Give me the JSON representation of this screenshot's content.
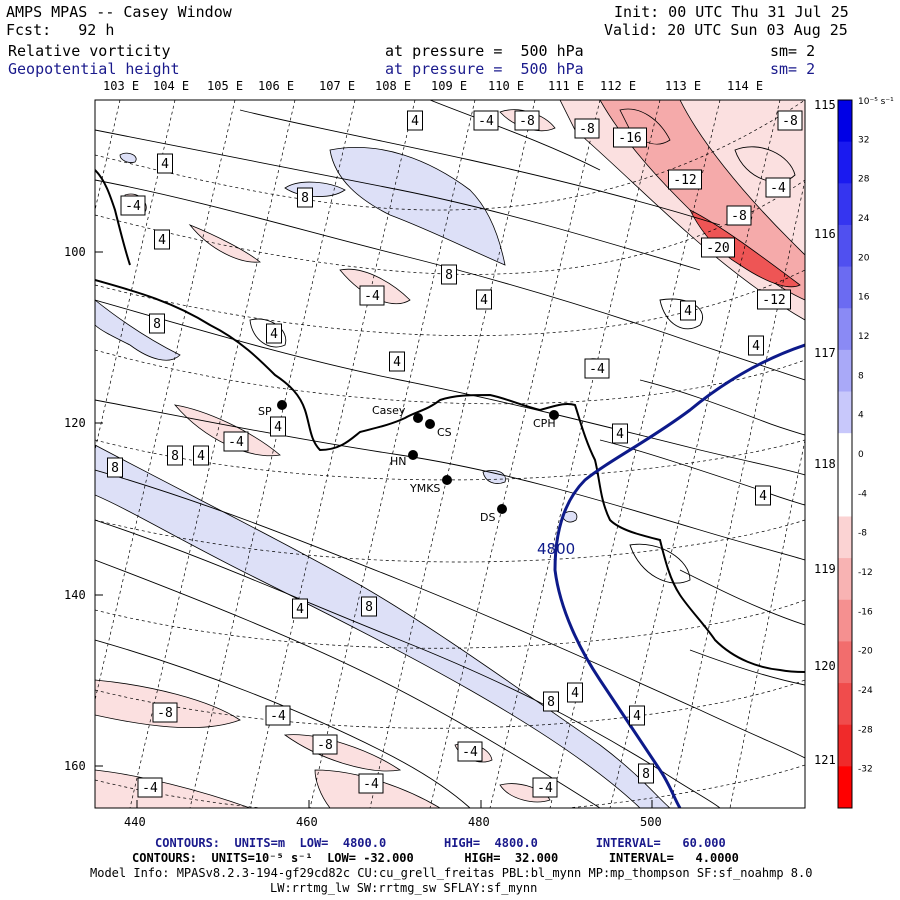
{
  "header": {
    "title": "AMPS MPAS -- Casey Window",
    "forecast": "Fcst:   92 h",
    "init": "Init: 00 UTC Thu 31 Jul 25",
    "valid": "Valid: 20 UTC Sun 03 Aug 25",
    "field1": "Relative vorticity",
    "field1_level": "at pressure =  500 hPa",
    "field1_smooth": "sm= 2",
    "field2": "Geopotential height",
    "field2_level": "at pressure =  500 hPa",
    "field2_smooth": "sm= 2"
  },
  "top_lon_labels": [
    "103 E",
    "104 E",
    "105 E",
    "106 E",
    "107 E",
    "108 E",
    "109 E",
    "110 E",
    "111 E",
    "112 E",
    "113 E",
    "114 E"
  ],
  "right_lon_labels": [
    "115 E",
    "116 E",
    "117 E",
    "118 E",
    "119 E",
    "120 E",
    "121 E"
  ],
  "x_ticks": [
    "440",
    "460",
    "480",
    "500"
  ],
  "y_ticks": [
    "100",
    "120",
    "140",
    "160"
  ],
  "stations": [
    {
      "name": "SP"
    },
    {
      "name": "Casey"
    },
    {
      "name": "CS"
    },
    {
      "name": "HN"
    },
    {
      "name": "YMKS"
    },
    {
      "name": "DS"
    },
    {
      "name": "CPH"
    }
  ],
  "height_contour_label": "4800",
  "vorticity_labels": [
    "4",
    "8",
    "-4",
    "-8",
    "-12",
    "-16",
    "-20"
  ],
  "colorbar": {
    "unit": "10⁻⁵ s⁻¹",
    "labels": [
      "32",
      "28",
      "24",
      "20",
      "16",
      "12",
      "8",
      "4",
      "0",
      "-4",
      "-8",
      "-12",
      "-16",
      "-20",
      "-24",
      "-28",
      "-32"
    ],
    "colors": [
      "#0000e6",
      "#1a1af0",
      "#3535f0",
      "#5050f0",
      "#6b6bf2",
      "#8a8af5",
      "#a9a9f8",
      "#c8c8fb",
      "#ffffff",
      "#ffffff",
      "#fbd3d3",
      "#f8b3b3",
      "#f59090",
      "#f26d6d",
      "#f04c4c",
      "#f02a2a",
      "#ff0000"
    ]
  },
  "footer": {
    "line1": "CONTOURS:  UNITS=m  LOW=  4800.0        HIGH=  4800.0        INTERVAL=   60.000",
    "line2": "CONTOURS:  UNITS=10⁻⁵ s⁻¹  LOW= -32.000       HIGH=  32.000       INTERVAL=   4.0000",
    "line3": "Model Info: MPASv8.2.3-194-gf29cd82c CU:cu_grell_freitas PBL:bl_mynn MP:mp_thompson SF:sf_noahmp 8.0",
    "line4": "LW:rrtmg_lw SW:rrtmg_sw SFLAY:sf_mynn"
  },
  "colors": {
    "positive_fill": "#dde0f7",
    "negative_fill_light": "#fbe0e0",
    "negative_fill_mid": "#f5aaaa",
    "negative_fill_strong": "#ee5555",
    "height_contour": "#0d1a8a",
    "coast": "#000000"
  }
}
